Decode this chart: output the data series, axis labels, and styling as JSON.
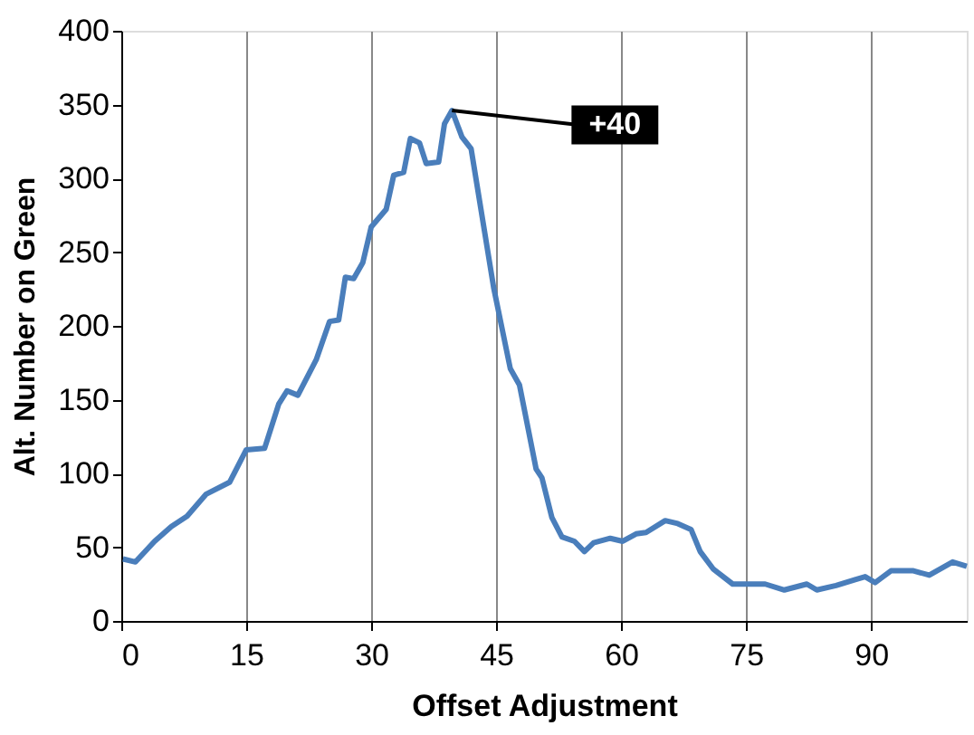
{
  "chart_data": {
    "type": "line",
    "xlabel": "Offset Adjustment",
    "ylabel": "Alt. Number on Green",
    "x": [
      0.2,
      1.7,
      4,
      6,
      7.9,
      10.2,
      13,
      15,
      17.2,
      18.9,
      19.9,
      21.2,
      23.4,
      25,
      26.1,
      26.9,
      27.9,
      29,
      30,
      31.8,
      32.7,
      33.9,
      34.7,
      35.8,
      36.6,
      38.1,
      38.8,
      39.7,
      40.9,
      42,
      44.7,
      46.7,
      47.8,
      49.8,
      50.5,
      51.7,
      52.9,
      54.4,
      55.6,
      56.7,
      58.7,
      60.2,
      61.8,
      63,
      65.3,
      66.8,
      68.4,
      69.5,
      71.1,
      73.4,
      77.3,
      79.6,
      82.3,
      83.5,
      85.8,
      88.1,
      89.3,
      90.5,
      92.4,
      95.1,
      97,
      99.8,
      101.5
    ],
    "series": [
      {
        "color": "#4a7ebb",
        "values": [
          42,
          40,
          54,
          64,
          71,
          86,
          94,
          116,
          117,
          147,
          156,
          153,
          177,
          203,
          204,
          233,
          232,
          243,
          267,
          279,
          302,
          304,
          327,
          324,
          310,
          311,
          337,
          346,
          328,
          320,
          226,
          171,
          160,
          103,
          97,
          70,
          57,
          54,
          47,
          53,
          56,
          54,
          59,
          60,
          68,
          66,
          62,
          47,
          35,
          25,
          25,
          21,
          25,
          21,
          24,
          28,
          30,
          26,
          34,
          34,
          31,
          40,
          37
        ]
      }
    ],
    "xlim": [
      0,
      101.5
    ],
    "xticks": [
      0,
      15,
      30,
      45,
      60,
      75,
      90
    ],
    "ylim": [
      0,
      400
    ],
    "yticks": [
      0,
      50,
      100,
      150,
      200,
      250,
      300,
      350,
      400
    ],
    "grid": "x",
    "marker": "none",
    "line_style": "solid",
    "annotations": [
      {
        "text": "+40",
        "x": 39.7,
        "y": 346
      }
    ]
  }
}
